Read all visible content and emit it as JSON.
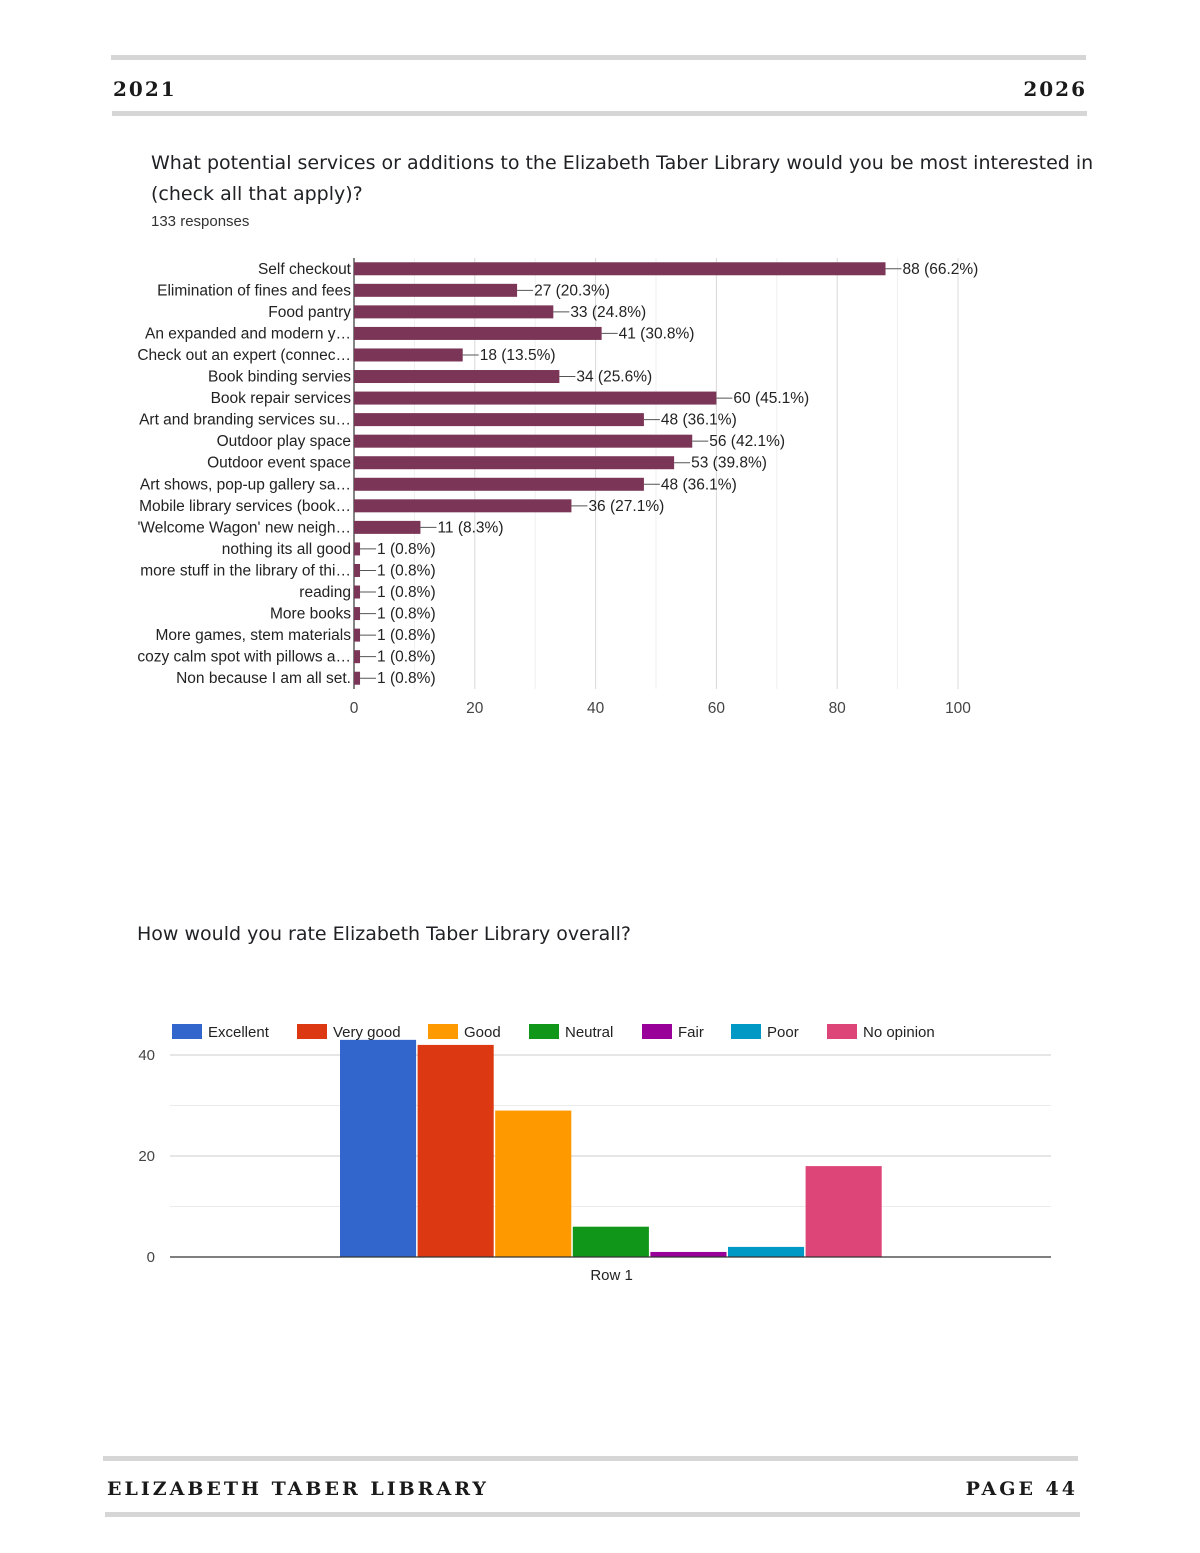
{
  "header": {
    "left": "2021",
    "right": "2026"
  },
  "footer": {
    "left": "ELIZABETH TABER LIBRARY",
    "right": "PAGE 44"
  },
  "q1": {
    "title_line1": "What potential services or additions to the Elizabeth Taber Library would you be most interested in",
    "title_line2": "(check all that apply)?",
    "responses": "133 responses"
  },
  "q2": {
    "title": "How would you rate Elizabeth Taber Library overall?"
  },
  "colors": {
    "bar1": "#7b3557",
    "excellent": "#3366cc",
    "very_good": "#dc3912",
    "good": "#ff9900",
    "neutral": "#109618",
    "fair": "#990099",
    "poor": "#0099c6",
    "no_opinion": "#dd4477"
  },
  "chart_data": [
    {
      "type": "bar",
      "orientation": "horizontal",
      "categories": [
        "Self checkout",
        "Elimination of fines and fees",
        "Food pantry",
        "An expanded and modern y…",
        "Check out an expert (connec…",
        "Book binding servies",
        "Book repair services",
        "Art and branding services su…",
        "Outdoor play space",
        "Outdoor event space",
        "Art shows, pop-up gallery sa…",
        "Mobile library services (book…",
        "'Welcome Wagon' new neigh…",
        "nothing its all good",
        "more stuff in the library of thi…",
        "reading",
        "More books",
        "More games, stem materials",
        "cozy calm spot with pillows a…",
        "Non because I am all set."
      ],
      "values": [
        88,
        27,
        33,
        41,
        18,
        34,
        60,
        48,
        56,
        53,
        48,
        36,
        11,
        1,
        1,
        1,
        1,
        1,
        1,
        1
      ],
      "data_labels": [
        "88 (66.2%)",
        "27 (20.3%)",
        "33 (24.8%)",
        "41 (30.8%)",
        "18 (13.5%)",
        "34 (25.6%)",
        "60 (45.1%)",
        "48 (36.1%)",
        "56 (42.1%)",
        "53 (39.8%)",
        "48 (36.1%)",
        "36 (27.1%)",
        "11 (8.3%)",
        "1 (0.8%)",
        "1 (0.8%)",
        "1 (0.8%)",
        "1 (0.8%)",
        "1 (0.8%)",
        "1 (0.8%)",
        "1 (0.8%)"
      ],
      "xlim": [
        0,
        100
      ],
      "xticks": [
        "0",
        "20",
        "40",
        "60",
        "80",
        "100"
      ],
      "grid": true
    },
    {
      "type": "bar",
      "categories": [
        "Row 1"
      ],
      "series": [
        {
          "name": "Excellent",
          "values": [
            43
          ],
          "color": "#3366cc"
        },
        {
          "name": "Very good",
          "values": [
            42
          ],
          "color": "#dc3912"
        },
        {
          "name": "Good",
          "values": [
            29
          ],
          "color": "#ff9900"
        },
        {
          "name": "Neutral",
          "values": [
            6
          ],
          "color": "#109618"
        },
        {
          "name": "Fair",
          "values": [
            1
          ],
          "color": "#990099"
        },
        {
          "name": "Poor",
          "values": [
            2
          ],
          "color": "#0099c6"
        },
        {
          "name": "No opinion",
          "values": [
            18
          ],
          "color": "#dd4477"
        }
      ],
      "ylim": [
        0,
        40
      ],
      "yticks": [
        "0",
        "20",
        "40"
      ],
      "legend": "top",
      "grid": true
    }
  ]
}
